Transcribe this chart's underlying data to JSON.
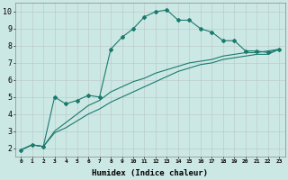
{
  "xlabel": "Humidex (Indice chaleur)",
  "bg_color": "#cce8e4",
  "grid_color": "#bbcccc",
  "line_color": "#1a7a6e",
  "xlim": [
    -0.5,
    23.5
  ],
  "ylim": [
    1.5,
    10.5
  ],
  "xtick_labels": [
    "0",
    "1",
    "2",
    "3",
    "4",
    "5",
    "6",
    "7",
    "8",
    "9",
    "10",
    "11",
    "12",
    "13",
    "14",
    "15",
    "16",
    "17",
    "18",
    "19",
    "20",
    "21",
    "22",
    "23"
  ],
  "ytick_labels": [
    "2",
    "3",
    "4",
    "5",
    "6",
    "7",
    "8",
    "9",
    "10"
  ],
  "ytick_vals": [
    2,
    3,
    4,
    5,
    6,
    7,
    8,
    9,
    10
  ],
  "line1_x": [
    0,
    1,
    2,
    3,
    4,
    5,
    6,
    7,
    8,
    9,
    10,
    11,
    12,
    13,
    14,
    15,
    16,
    17,
    18,
    19,
    20,
    21,
    22,
    23
  ],
  "line1_y": [
    1.9,
    2.2,
    2.1,
    5.0,
    4.6,
    4.8,
    5.1,
    5.0,
    7.8,
    8.5,
    9.0,
    9.7,
    10.0,
    10.1,
    9.5,
    9.5,
    9.0,
    8.8,
    8.3,
    8.3,
    7.7,
    7.7,
    7.6,
    7.8
  ],
  "line2_x": [
    0,
    1,
    2,
    3,
    4,
    5,
    6,
    7,
    8,
    9,
    10,
    11,
    12,
    13,
    14,
    15,
    16,
    17,
    18,
    19,
    20,
    21,
    22,
    23
  ],
  "line2_y": [
    1.9,
    2.2,
    2.1,
    3.0,
    3.5,
    4.0,
    4.5,
    4.8,
    5.3,
    5.6,
    5.9,
    6.1,
    6.4,
    6.6,
    6.8,
    7.0,
    7.1,
    7.2,
    7.4,
    7.5,
    7.6,
    7.6,
    7.7,
    7.8
  ],
  "line3_x": [
    0,
    1,
    2,
    3,
    4,
    5,
    6,
    7,
    8,
    9,
    10,
    11,
    12,
    13,
    14,
    15,
    16,
    17,
    18,
    19,
    20,
    21,
    22,
    23
  ],
  "line3_y": [
    1.9,
    2.2,
    2.1,
    2.9,
    3.2,
    3.6,
    4.0,
    4.3,
    4.7,
    5.0,
    5.3,
    5.6,
    5.9,
    6.2,
    6.5,
    6.7,
    6.9,
    7.0,
    7.2,
    7.3,
    7.4,
    7.5,
    7.5,
    7.8
  ]
}
